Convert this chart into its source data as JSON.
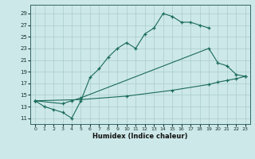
{
  "background_color": "#cde8e8",
  "grid_color": "#aacccc",
  "line_color": "#1a6b5a",
  "xlabel": "Humidex (Indice chaleur)",
  "xlim": [
    -0.5,
    23.5
  ],
  "ylim": [
    10.0,
    30.5
  ],
  "xticks": [
    0,
    1,
    2,
    3,
    4,
    5,
    6,
    7,
    8,
    9,
    10,
    11,
    12,
    13,
    14,
    15,
    16,
    17,
    18,
    19,
    20,
    21,
    22,
    23
  ],
  "yticks": [
    11,
    13,
    15,
    17,
    19,
    21,
    23,
    25,
    27,
    29
  ],
  "series": [
    {
      "x": [
        0,
        1,
        2,
        3,
        4,
        5,
        6,
        7,
        8,
        9,
        10,
        11,
        12,
        13,
        14,
        15,
        16,
        17,
        18,
        19
      ],
      "y": [
        14,
        13,
        12.5,
        12,
        11,
        14,
        18,
        19.5,
        21.5,
        23,
        24,
        23,
        25.5,
        26.5,
        29,
        28.5,
        27.5,
        27.5,
        27,
        26.5
      ]
    },
    {
      "x": [
        0,
        3,
        4,
        5,
        19,
        20,
        21,
        22,
        23
      ],
      "y": [
        14,
        13.5,
        14,
        14.5,
        23,
        20.5,
        20,
        18.5,
        18.2
      ]
    },
    {
      "x": [
        0,
        5,
        10,
        15,
        19,
        20,
        21,
        22,
        23
      ],
      "y": [
        14,
        14.2,
        14.8,
        15.8,
        16.8,
        17.2,
        17.5,
        17.8,
        18.2
      ]
    }
  ]
}
